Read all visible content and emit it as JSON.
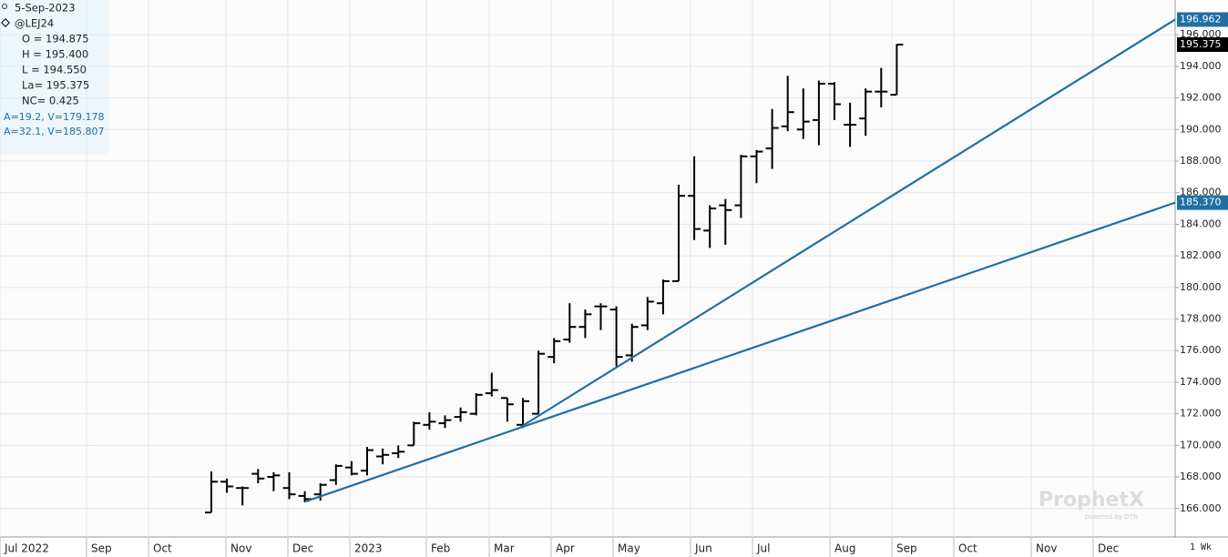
{
  "chart_data": {
    "type": "ohlc",
    "info": [
      "5-Sep-2023",
      "@LEJ24",
      "O = 194.875",
      "H = 195.400",
      "L = 194.550",
      "La= 195.375",
      "NC= 0.425"
    ],
    "color": "#000000",
    "open": [
      165.75,
      167.7,
      167.3,
      168.2,
      168.0,
      167.3,
      166.8,
      166.9,
      167.8,
      168.6,
      168.4,
      169.3,
      169.5,
      170.0,
      171.3,
      171.4,
      171.8,
      172.0,
      173.3,
      173.0,
      171.3,
      172.0,
      175.6,
      176.7,
      177.5,
      178.8,
      178.6,
      175.7,
      177.6,
      179.0,
      180.4,
      185.8,
      183.6,
      185.2,
      185.2,
      188.3,
      188.8,
      190.2,
      190.0,
      190.6,
      192.9,
      190.3,
      190.7,
      192.4,
      192.2
    ],
    "high": [
      168.35,
      167.9,
      167.4,
      168.5,
      168.3,
      168.3,
      167.1,
      167.6,
      168.8,
      169.0,
      169.9,
      169.8,
      170.0,
      171.5,
      172.1,
      171.9,
      172.4,
      173.3,
      174.6,
      173.0,
      173.0,
      176.0,
      176.8,
      179.0,
      178.6,
      179.0,
      178.8,
      177.7,
      179.4,
      180.5,
      186.5,
      188.3,
      185.2,
      185.6,
      188.4,
      188.7,
      191.3,
      193.4,
      192.6,
      193.1,
      193.0,
      191.7,
      192.6,
      193.9,
      195.4
    ],
    "low": [
      165.75,
      167.0,
      166.2,
      167.6,
      167.1,
      166.6,
      166.4,
      166.5,
      167.5,
      168.1,
      168.1,
      168.8,
      169.2,
      170.0,
      171.0,
      171.1,
      171.5,
      171.9,
      173.1,
      171.5,
      171.1,
      172.0,
      175.2,
      176.5,
      176.8,
      177.3,
      175.0,
      175.3,
      177.3,
      178.3,
      180.4,
      183.0,
      182.5,
      182.7,
      184.4,
      186.6,
      187.5,
      189.9,
      189.4,
      189.0,
      190.6,
      188.9,
      189.6,
      191.4,
      192.2
    ],
    "close": [
      167.7,
      167.4,
      167.3,
      167.9,
      168.1,
      166.9,
      166.6,
      167.5,
      168.7,
      168.2,
      169.7,
      169.4,
      169.6,
      171.4,
      171.5,
      171.6,
      172.1,
      173.2,
      173.5,
      172.6,
      172.8,
      175.8,
      176.6,
      177.5,
      178.3,
      178.8,
      175.6,
      177.5,
      179.1,
      180.4,
      185.8,
      183.7,
      185.0,
      184.9,
      188.3,
      188.6,
      190.1,
      191.1,
      190.5,
      192.9,
      191.6,
      190.3,
      192.4,
      192.4,
      195.375
    ],
    "last": {
      "value": 195.375,
      "label": "195.375"
    },
    "trendlines": [
      {
        "label": "A=19.2, V=179.178",
        "start": 166.46,
        "end": {
          "value": 185.37,
          "label": "185.370"
        },
        "color": "#1f6fa3"
      },
      {
        "label": "A=32.1, V=185.807",
        "start": 171.18,
        "end": {
          "value": 196.962,
          "label": "196.962"
        },
        "color": "#1f6fa3"
      }
    ],
    "ylim": [
      164.2,
      198.2
    ],
    "yticks": [
      {
        "value": 166,
        "label": "166.000"
      },
      {
        "value": 168,
        "label": "168.000"
      },
      {
        "value": 170,
        "label": "170.000"
      },
      {
        "value": 172,
        "label": "172.000"
      },
      {
        "value": 174,
        "label": "174.000"
      },
      {
        "value": 176,
        "label": "176.000"
      },
      {
        "value": 178,
        "label": "178.000"
      },
      {
        "value": 180,
        "label": "180.000"
      },
      {
        "value": 182,
        "label": "182.000"
      },
      {
        "value": 184,
        "label": "184.000"
      },
      {
        "value": 186,
        "label": "186.000"
      },
      {
        "value": 188,
        "label": "188.000"
      },
      {
        "value": 190,
        "label": "190.000"
      },
      {
        "value": 192,
        "label": "192.000"
      },
      {
        "value": 194,
        "label": "194.000"
      },
      {
        "value": 196,
        "label": "196.000"
      }
    ],
    "xtick_labels": [
      "Jul 2022",
      "Sep",
      "Oct",
      "Nov",
      "Dec",
      "2023",
      "Feb",
      "Mar",
      "Apr",
      "May",
      "Jun",
      "Jul",
      "Aug",
      "Sep",
      "Oct",
      "Nov",
      "Dec"
    ],
    "period": "1 Wk",
    "watermark": "ProphetX",
    "watermark_sub": "powered by DTN",
    "grid": true
  }
}
